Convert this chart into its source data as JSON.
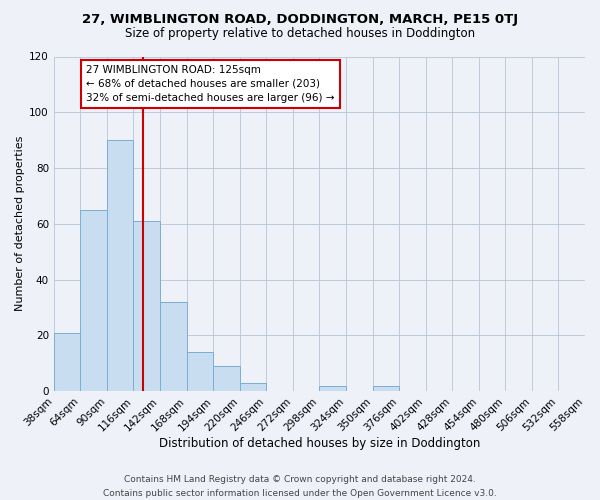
{
  "title": "27, WIMBLINGTON ROAD, DODDINGTON, MARCH, PE15 0TJ",
  "subtitle": "Size of property relative to detached houses in Doddington",
  "bin_edges": [
    38,
    64,
    90,
    116,
    142,
    168,
    194,
    220,
    246,
    272,
    298,
    324,
    350,
    376,
    402,
    428,
    454,
    480,
    506,
    532,
    558
  ],
  "bar_heights": [
    21,
    65,
    90,
    61,
    32,
    14,
    9,
    3,
    0,
    0,
    2,
    0,
    2,
    0,
    0,
    0,
    0,
    0,
    0,
    0
  ],
  "bar_color": "#c8ddef",
  "bar_edge_color": "#7aaed4",
  "property_line_x": 125,
  "property_line_color": "#cc0000",
  "xlabel": "Distribution of detached houses by size in Doddington",
  "ylabel": "Number of detached properties",
  "x_tick_labels": [
    "38sqm",
    "64sqm",
    "90sqm",
    "116sqm",
    "142sqm",
    "168sqm",
    "194sqm",
    "220sqm",
    "246sqm",
    "272sqm",
    "298sqm",
    "324sqm",
    "350sqm",
    "376sqm",
    "402sqm",
    "428sqm",
    "454sqm",
    "480sqm",
    "506sqm",
    "532sqm",
    "558sqm"
  ],
  "ylim": [
    0,
    120
  ],
  "yticks": [
    0,
    20,
    40,
    60,
    80,
    100,
    120
  ],
  "annotation_title": "27 WIMBLINGTON ROAD: 125sqm",
  "annotation_line1": "← 68% of detached houses are smaller (203)",
  "annotation_line2": "32% of semi-detached houses are larger (96) →",
  "annotation_box_color": "#ffffff",
  "annotation_box_edge_color": "#cc0000",
  "background_color": "#eef2f8",
  "footer1": "Contains HM Land Registry data © Crown copyright and database right 2024.",
  "footer2": "Contains public sector information licensed under the Open Government Licence v3.0.",
  "title_fontsize": 9.5,
  "subtitle_fontsize": 8.5,
  "xlabel_fontsize": 8.5,
  "ylabel_fontsize": 8,
  "tick_fontsize": 7.5,
  "footer_fontsize": 6.5,
  "annotation_fontsize": 7.5
}
